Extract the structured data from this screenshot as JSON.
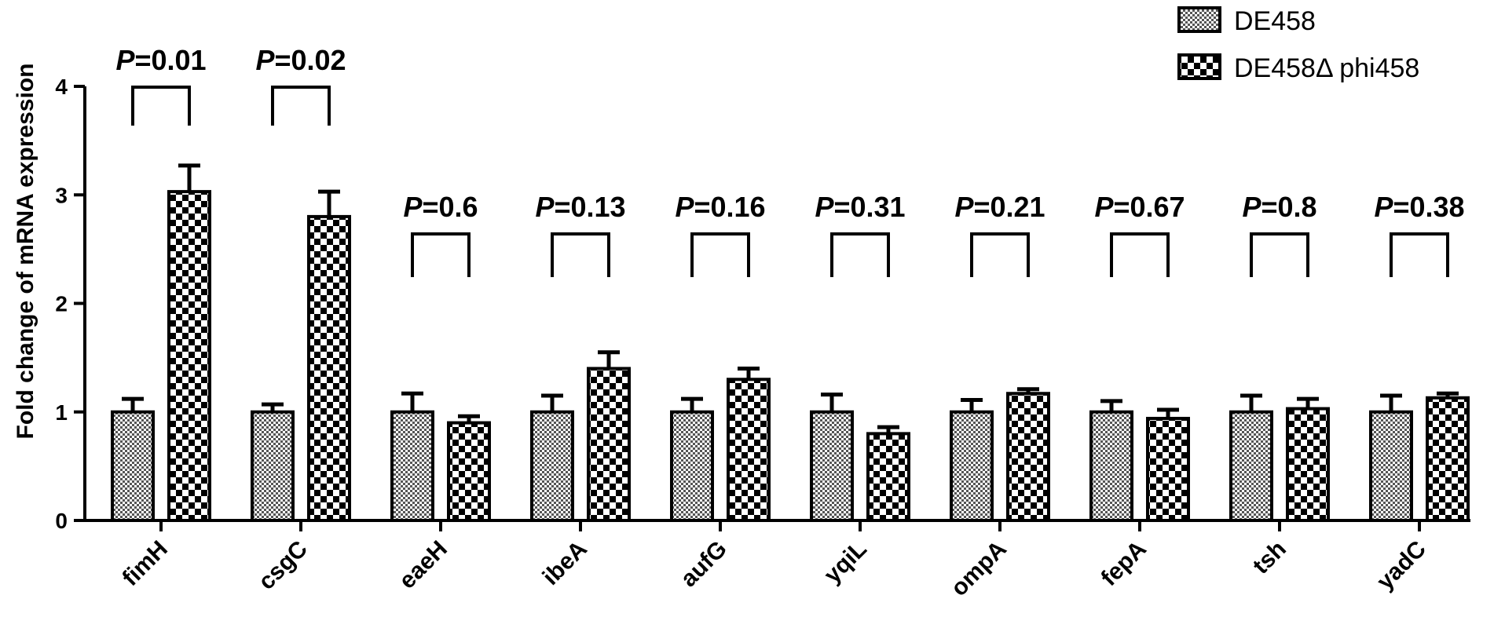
{
  "chart_data": {
    "type": "bar",
    "ylabel": "Fold change of mRNA expression",
    "ylim": [
      0,
      4
    ],
    "yticks": [
      "0",
      "1",
      "2",
      "3",
      "4"
    ],
    "categories": [
      "fimH",
      "csgC",
      "eaeH",
      "ibeA",
      "aufG",
      "yqiL",
      "ompA",
      "fepA",
      "tsh",
      "yadC"
    ],
    "series": [
      {
        "name": "DE458",
        "pattern": "fine-checker",
        "values": [
          1.0,
          1.0,
          1.0,
          1.0,
          1.0,
          1.0,
          1.0,
          1.0,
          1.0,
          1.0
        ],
        "errors": [
          0.12,
          0.07,
          0.17,
          0.15,
          0.12,
          0.16,
          0.11,
          0.1,
          0.15,
          0.15
        ]
      },
      {
        "name": "DE458Δ phi458",
        "pattern": "coarse-checker",
        "values": [
          3.03,
          2.8,
          0.9,
          1.4,
          1.3,
          0.8,
          1.17,
          0.94,
          1.03,
          1.13
        ],
        "errors": [
          0.24,
          0.23,
          0.06,
          0.15,
          0.1,
          0.06,
          0.04,
          0.08,
          0.09,
          0.04
        ]
      }
    ],
    "annotations": [
      {
        "p_prefix": "P",
        "text": "=0.01"
      },
      {
        "p_prefix": "P",
        "text": "=0.02"
      },
      {
        "p_prefix": "P",
        "text": "=0.6"
      },
      {
        "p_prefix": "P",
        "text": "=0.13"
      },
      {
        "p_prefix": "P",
        "text": "=0.16"
      },
      {
        "p_prefix": "P",
        "text": "=0.31"
      },
      {
        "p_prefix": "P",
        "text": "=0.21"
      },
      {
        "p_prefix": "P",
        "text": "=0.67"
      },
      {
        "p_prefix": "P",
        "text": "=0.8"
      },
      {
        "p_prefix": "P",
        "text": "=0.38"
      }
    ],
    "legend_position": "top-right",
    "grid": false
  }
}
